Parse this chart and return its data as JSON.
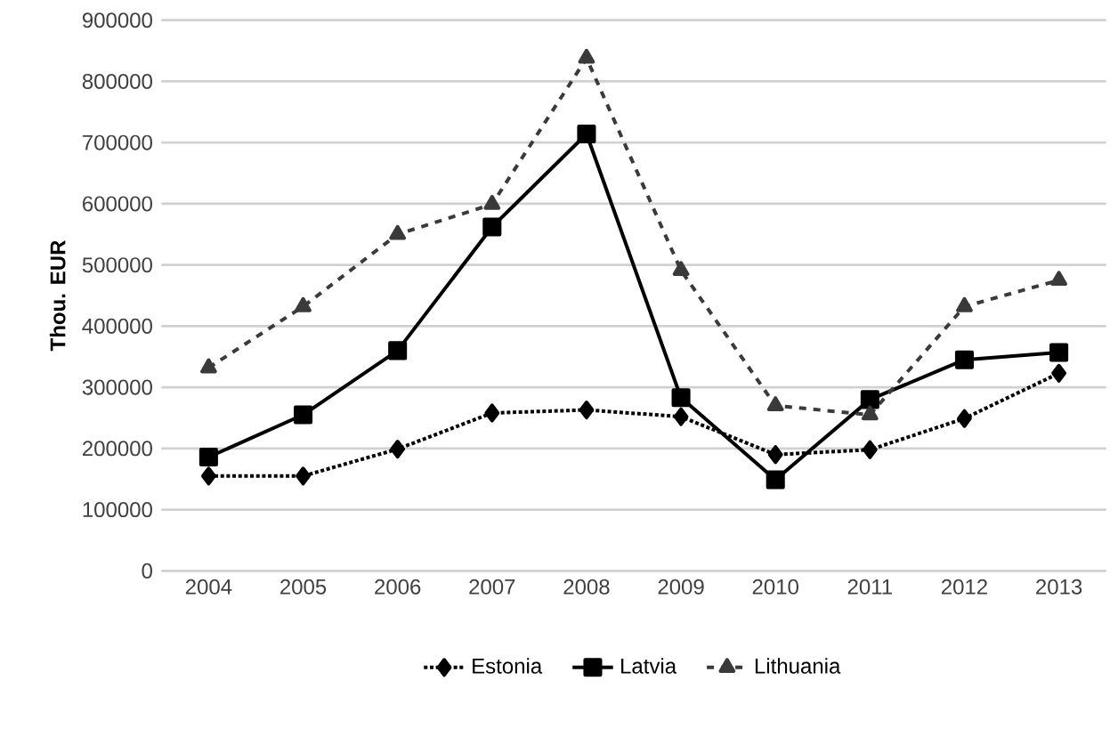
{
  "chart_data": {
    "type": "line",
    "ylabel": "Thou. EUR",
    "categories": [
      "2004",
      "2005",
      "2006",
      "2007",
      "2008",
      "2009",
      "2010",
      "2011",
      "2012",
      "2013"
    ],
    "series": [
      {
        "name": "Estonia",
        "color": "#000000",
        "marker": "diamond",
        "line_style": "dotted",
        "values": [
          155000,
          155000,
          199000,
          258000,
          263000,
          252000,
          190000,
          198000,
          249000,
          323000
        ]
      },
      {
        "name": "Latvia",
        "color": "#000000",
        "marker": "square",
        "line_style": "solid",
        "values": [
          186000,
          255000,
          360000,
          562000,
          714000,
          283000,
          149000,
          280000,
          345000,
          357000
        ]
      },
      {
        "name": "Lithuania",
        "color": "#3a3a3a",
        "marker": "triangle",
        "line_style": "dashed",
        "values": [
          332000,
          432000,
          550000,
          599000,
          838000,
          491000,
          270000,
          255000,
          432000,
          475000
        ]
      }
    ],
    "ylim": [
      0,
      900000
    ],
    "yticks": [
      0,
      100000,
      200000,
      300000,
      400000,
      500000,
      600000,
      700000,
      800000,
      900000
    ],
    "grid": "y",
    "legend": "bottom"
  }
}
